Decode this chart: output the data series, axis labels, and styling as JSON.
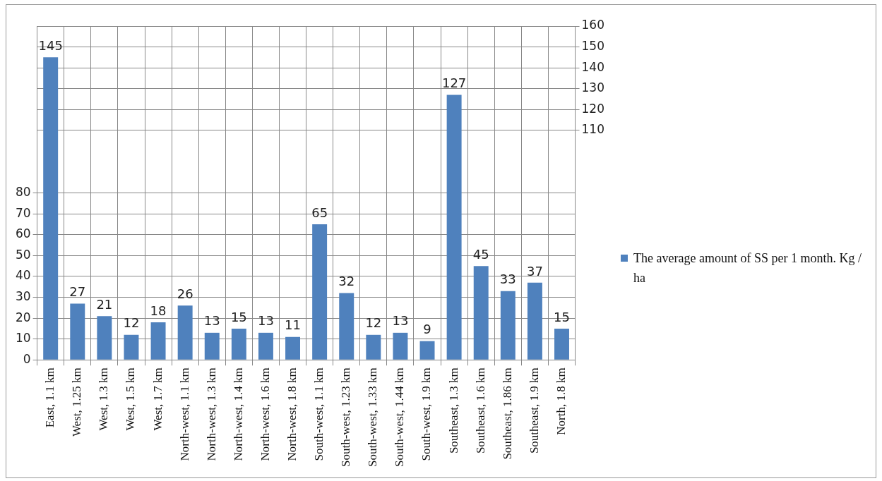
{
  "chart_data": {
    "type": "bar",
    "categories": [
      "East, 1.1 km",
      "West, 1.25 km",
      "West, 1.3 km",
      "West, 1.5 km",
      "West, 1.7 km",
      "North-west, 1.1 km",
      "North-west, 1.3 km",
      "North-west, 1.4 km",
      "North-west, 1.6 km",
      "North-west, 1.8 km",
      "South-west, 1.1 km",
      "South-west, 1.23 km",
      "South-west, 1.33 km",
      "South-west, 1.44 km",
      "South-west, 1.9 km",
      "Southeast, 1.3 km",
      "Southeast, 1.6 km",
      "Southeast, 1.86 km",
      "Southeast, 1.9 km",
      "North, 1.8 km"
    ],
    "series": [
      {
        "name": "The average amount of SS per 1 month. Kg / ha",
        "color": "#4f81bd",
        "values": [
          145,
          27,
          21,
          12,
          18,
          26,
          13,
          15,
          13,
          11,
          65,
          32,
          12,
          13,
          9,
          127,
          45,
          33,
          37,
          15
        ]
      }
    ],
    "ylim": [
      0,
      160
    ],
    "yticks": [
      0,
      10,
      20,
      30,
      40,
      50,
      60,
      70,
      80
    ],
    "y2lim": [
      0,
      160
    ],
    "y2ticks": [
      110,
      120,
      130,
      140,
      150,
      160
    ],
    "grid": true,
    "legend": "right",
    "data_labels": true
  }
}
